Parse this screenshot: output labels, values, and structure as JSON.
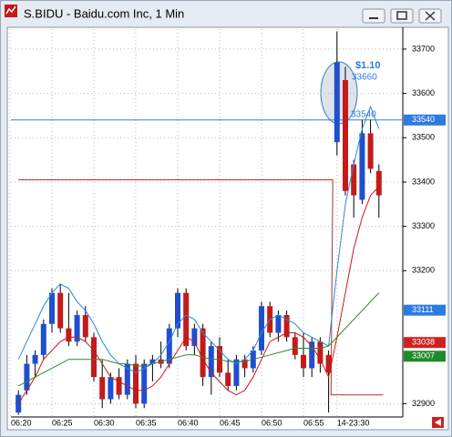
{
  "window": {
    "title": "S.BIDU - Baidu.com Inc, 1 Min"
  },
  "chart_data": {
    "type": "candlestick",
    "categories": [
      "06:20",
      null,
      null,
      null,
      null,
      "06:25",
      null,
      null,
      null,
      null,
      "06:30",
      null,
      null,
      null,
      null,
      "06:35",
      null,
      null,
      null,
      null,
      "06:40",
      null,
      null,
      null,
      null,
      "06:45",
      null,
      null,
      null,
      null,
      "06:50",
      null,
      null,
      null,
      null,
      "06:55",
      null,
      null,
      null,
      "14-23:30",
      null,
      null,
      null,
      null,
      null
    ],
    "open": [
      null,
      32880,
      32930,
      32990,
      33010,
      33080,
      33150,
      33070,
      33040,
      33100,
      33050,
      32960,
      32910,
      32960,
      32920,
      32990,
      32900,
      32990,
      33000,
      32990,
      33070,
      33150,
      33030,
      33070,
      32960,
      33030,
      32970,
      32940,
      33000,
      32980,
      33020,
      33120,
      33060,
      33100,
      33050,
      33010,
      32980,
      33040,
      33010,
      33490,
      33630,
      33440,
      33360,
      33510,
      33425
    ],
    "high": [
      null,
      32930,
      33010,
      33020,
      33090,
      33160,
      33170,
      33150,
      33110,
      33120,
      33060,
      33000,
      32970,
      32980,
      33000,
      33010,
      33000,
      33010,
      33040,
      33080,
      33160,
      33160,
      33080,
      33080,
      33040,
      33050,
      33000,
      33010,
      33010,
      33030,
      33130,
      33130,
      33110,
      33110,
      33060,
      33060,
      33050,
      33050,
      33020,
      33740,
      33660,
      33450,
      33540,
      33540,
      33440
    ],
    "low": [
      null,
      32875,
      32920,
      32960,
      33000,
      33060,
      33060,
      33030,
      33030,
      33040,
      32950,
      32890,
      32900,
      32910,
      32910,
      32890,
      32890,
      32950,
      32980,
      32980,
      33050,
      33020,
      33010,
      32940,
      32920,
      32960,
      32930,
      32930,
      32960,
      32970,
      33010,
      33050,
      33040,
      33040,
      33000,
      32960,
      32960,
      32970,
      32880,
      33460,
      33370,
      33320,
      33350,
      33420,
      33320
    ],
    "close": [
      null,
      32920,
      32990,
      33010,
      33080,
      33150,
      33070,
      33040,
      33100,
      33050,
      32960,
      32910,
      32960,
      32920,
      32990,
      32900,
      32990,
      33000,
      32990,
      33070,
      33150,
      33030,
      33070,
      32960,
      33030,
      32970,
      32940,
      33000,
      32980,
      33020,
      33120,
      33060,
      33100,
      33050,
      33010,
      32980,
      33040,
      32990,
      32970,
      33670,
      33380,
      33370,
      33510,
      33430,
      33370
    ],
    "up_color": "#1f4fd0",
    "down_color": "#c41a1a",
    "lines": [
      {
        "color": "#2a8ad8",
        "values": [
          null,
          33000,
          33040,
          33080,
          33120,
          33150,
          33170,
          33160,
          33130,
          33110,
          33080,
          33040,
          33010,
          32990,
          32980,
          32970,
          32980,
          32990,
          33010,
          33040,
          33080,
          33100,
          33090,
          33060,
          33040,
          33020,
          33000,
          32990,
          33000,
          33020,
          33060,
          33090,
          33100,
          33090,
          33080,
          33060,
          33050,
          33040,
          33030,
          33200,
          33350,
          33440,
          33520,
          33570,
          33520
        ]
      },
      {
        "color": "#c41a1a",
        "values": [
          null,
          32900,
          32930,
          32960,
          33000,
          33020,
          33040,
          33050,
          33050,
          33040,
          33020,
          32990,
          32960,
          32950,
          32940,
          32930,
          32930,
          32940,
          32960,
          32990,
          33020,
          33050,
          33040,
          33000,
          32970,
          32950,
          32930,
          32920,
          32930,
          32960,
          33000,
          33040,
          33050,
          33060,
          33060,
          33050,
          33030,
          33000,
          32960,
          33050,
          33150,
          33250,
          33320,
          33370,
          33390
        ]
      },
      {
        "color": "#2e8b2e",
        "values": [
          null,
          32940,
          32950,
          32960,
          32970,
          32980,
          32990,
          33000,
          33000,
          33000,
          33000,
          33000,
          32995,
          32990,
          32990,
          32985,
          32985,
          32990,
          32995,
          33000,
          33005,
          33010,
          33010,
          33005,
          33000,
          33000,
          32995,
          32995,
          32995,
          33000,
          33005,
          33010,
          33015,
          33020,
          33025,
          33025,
          33025,
          33025,
          33030,
          33050,
          33070,
          33090,
          33110,
          33130,
          33150
        ]
      }
    ],
    "level_line": {
      "color": "#b03030",
      "values": [
        null,
        33405,
        33405,
        33405,
        33405,
        33405,
        33405,
        33405,
        33405,
        33405,
        33405,
        33405,
        33405,
        33405,
        33405,
        33405,
        33405,
        33405,
        33405,
        33405,
        33405,
        33405,
        33405,
        33405,
        33405,
        33405,
        33405,
        33405,
        33405,
        33405,
        33405,
        33405,
        33405,
        33405,
        33405,
        33405,
        33405,
        33405,
        33405,
        32920,
        32920,
        32920,
        32920,
        32920,
        32920
      ]
    },
    "ylim": [
      32870,
      33745
    ],
    "yticks": [
      32900,
      33200,
      33300,
      33400,
      33500,
      33600,
      33700
    ],
    "grid": true,
    "price_line": {
      "value": 33540,
      "color": "#3a7fc8"
    },
    "price_tags": [
      {
        "value": 33540,
        "color": "#2c7be0"
      },
      {
        "value": 33111,
        "color": "#2c7be0"
      },
      {
        "value": 33038,
        "color": "#d02020"
      },
      {
        "value": 33007,
        "color": "#1f8a2a"
      }
    ],
    "annotations": [
      {
        "text": "$1.10"
      },
      {
        "text": "33660"
      },
      {
        "text": "33540"
      }
    ]
  }
}
